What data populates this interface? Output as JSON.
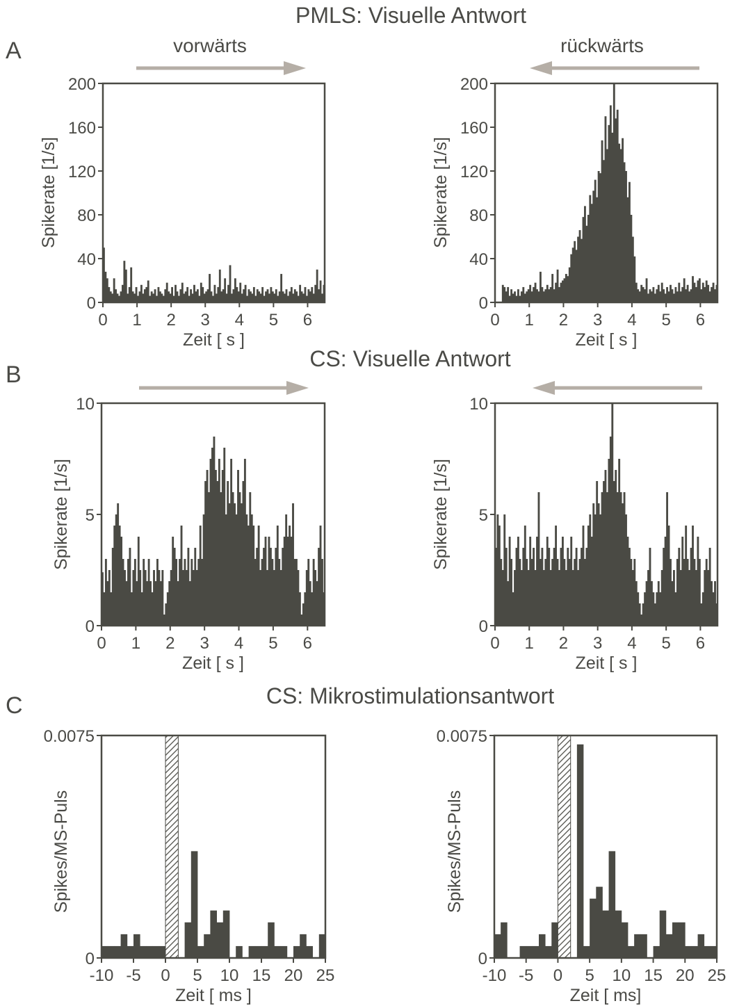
{
  "figure": {
    "section_titles": {
      "A": "PMLS: Visuelle Antwort",
      "B": "CS: Visuelle Antwort",
      "C": "CS: Mikrostimulationsantwort"
    },
    "panel_letters": [
      "A",
      "B",
      "C"
    ],
    "direction_labels": {
      "forward": "vorwärts",
      "backward": "rückwärts"
    },
    "colors": {
      "bars": "#4a4a44",
      "arrow": "#b5aea6",
      "text": "#4a4a46"
    }
  },
  "chart_data": [
    {
      "id": "A-left",
      "type": "bar",
      "section": "A",
      "direction_arrow": "right",
      "title": "",
      "direction_label": "vorwärts",
      "xlabel": "Zeit [ s ]",
      "ylabel": "Spikerate [1/s]",
      "xlim": [
        0,
        6.5
      ],
      "ylim": [
        0,
        200
      ],
      "xticks": [
        0,
        1,
        2,
        3,
        4,
        5,
        6
      ],
      "yticks": [
        0,
        40,
        80,
        120,
        160,
        200
      ],
      "bin_width": 0.05,
      "values": [
        50,
        28,
        22,
        14,
        10,
        8,
        22,
        12,
        8,
        6,
        10,
        16,
        38,
        30,
        8,
        14,
        32,
        10,
        8,
        14,
        6,
        10,
        16,
        8,
        12,
        14,
        20,
        6,
        10,
        8,
        12,
        6,
        14,
        10,
        8,
        6,
        12,
        18,
        10,
        8,
        14,
        6,
        16,
        10,
        6,
        12,
        18,
        8,
        10,
        14,
        6,
        12,
        8,
        16,
        10,
        12,
        6,
        18,
        14,
        8,
        10,
        12,
        26,
        10,
        6,
        16,
        8,
        14,
        30,
        10,
        12,
        22,
        8,
        16,
        34,
        8,
        12,
        22,
        14,
        10,
        18,
        8,
        12,
        16,
        6,
        12,
        10,
        8,
        14,
        6,
        12,
        10,
        8,
        14,
        6,
        10,
        12,
        8,
        14,
        10,
        8,
        12,
        6,
        10,
        26,
        10,
        8,
        12,
        6,
        10,
        14,
        8,
        12,
        10,
        6,
        16,
        10,
        8,
        14,
        6,
        12,
        10,
        14,
        8,
        16,
        30,
        12,
        20,
        8,
        16
      ]
    },
    {
      "id": "A-right",
      "type": "bar",
      "section": "A",
      "direction_arrow": "left",
      "title": "",
      "direction_label": "rückwärts",
      "xlabel": "Zeit [ s ]",
      "ylabel": "Spikerate [1/s]",
      "xlim": [
        0,
        6.5
      ],
      "ylim": [
        0,
        200
      ],
      "xticks": [
        0,
        1,
        2,
        3,
        4,
        5,
        6
      ],
      "yticks": [
        0,
        40,
        80,
        120,
        160,
        200
      ],
      "bin_width": 0.05,
      "values": [
        0,
        0,
        0,
        0,
        16,
        14,
        10,
        14,
        6,
        12,
        8,
        10,
        6,
        12,
        6,
        10,
        14,
        8,
        10,
        12,
        16,
        10,
        14,
        18,
        12,
        10,
        28,
        14,
        10,
        12,
        16,
        12,
        14,
        26,
        12,
        18,
        30,
        14,
        18,
        20,
        22,
        26,
        24,
        32,
        44,
        50,
        56,
        48,
        60,
        66,
        58,
        78,
        88,
        70,
        80,
        98,
        90,
        102,
        112,
        96,
        120,
        118,
        148,
        130,
        170,
        140,
        162,
        180,
        155,
        200,
        168,
        176,
        145,
        140,
        150,
        128,
        120,
        96,
        110,
        80,
        60,
        42,
        18,
        12,
        10,
        16,
        14,
        12,
        22,
        8,
        12,
        10,
        14,
        8,
        12,
        16,
        10,
        18,
        12,
        8,
        14,
        10,
        16,
        12,
        8,
        14,
        10,
        18,
        10,
        14,
        22,
        12,
        16,
        10,
        12,
        24,
        18,
        14,
        20,
        22,
        12,
        18,
        14,
        20,
        16,
        10,
        14,
        18,
        12,
        16,
        20
      ]
    },
    {
      "id": "B-left",
      "type": "bar",
      "section": "B",
      "direction_arrow": "right",
      "title": "",
      "xlabel": "Zeit [ s ]",
      "ylabel": "Spikerate [1/s]",
      "xlim": [
        0,
        6.5
      ],
      "ylim": [
        0,
        10
      ],
      "xticks": [
        0,
        1,
        2,
        3,
        4,
        5,
        6
      ],
      "yticks": [
        0,
        5,
        10
      ],
      "bin_width": 0.05,
      "values": [
        2.4,
        1.5,
        3.0,
        2.0,
        2.5,
        1.5,
        3.5,
        4.5,
        5.0,
        5.5,
        4.5,
        4.0,
        3.0,
        2.5,
        2.0,
        3.0,
        3.5,
        1.5,
        2.5,
        3.0,
        2.0,
        4.0,
        2.5,
        1.5,
        3.0,
        2.5,
        2.0,
        3.0,
        2.0,
        1.5,
        2.5,
        2.0,
        3.0,
        2.5,
        2.0,
        2.5,
        0.5,
        1.0,
        1.5,
        2.0,
        2.5,
        4.0,
        3.5,
        3.0,
        2.0,
        3.0,
        4.5,
        2.5,
        3.0,
        2.5,
        3.5,
        2.0,
        3.0,
        2.5,
        3.5,
        2.5,
        3.0,
        4.5,
        3.0,
        5.0,
        6.5,
        7.0,
        6.0,
        7.5,
        8.0,
        8.5,
        7.0,
        6.5,
        7.5,
        6.0,
        7.0,
        8.0,
        5.0,
        6.5,
        5.5,
        7.5,
        6.0,
        5.5,
        5.0,
        7.0,
        6.0,
        5.5,
        6.5,
        7.5,
        5.0,
        4.5,
        6.0,
        5.0,
        4.5,
        3.0,
        3.5,
        4.5,
        2.5,
        3.0,
        3.5,
        4.0,
        2.5,
        4.0,
        3.5,
        3.0,
        2.5,
        3.5,
        4.5,
        3.0,
        2.5,
        3.5,
        4.0,
        5.0,
        4.0,
        4.5,
        4.0,
        5.5,
        3.0,
        3.0,
        2.5,
        1.5,
        0.5,
        1.0,
        1.5,
        2.5,
        3.0,
        2.0,
        1.5,
        3.0,
        2.5,
        2.0,
        3.5,
        4.5,
        3.0,
        1.5
      ]
    },
    {
      "id": "B-right",
      "type": "bar",
      "section": "B",
      "direction_arrow": "left",
      "title": "",
      "xlabel": "Zeit [ s ]",
      "ylabel": "Spikerate [1/s]",
      "xlim": [
        0,
        6.5
      ],
      "ylim": [
        0,
        10
      ],
      "xticks": [
        0,
        1,
        2,
        3,
        4,
        5,
        6
      ],
      "yticks": [
        0,
        5,
        10
      ],
      "bin_width": 0.05,
      "values": [
        3.5,
        5.0,
        4.5,
        3.0,
        2.5,
        5.0,
        3.5,
        2.0,
        4.0,
        3.0,
        1.5,
        2.5,
        3.5,
        4.0,
        3.0,
        2.5,
        3.5,
        4.5,
        3.0,
        2.5,
        4.0,
        3.0,
        3.5,
        2.5,
        4.0,
        6.0,
        3.0,
        3.5,
        2.5,
        3.0,
        4.0,
        3.5,
        2.5,
        3.0,
        3.5,
        4.5,
        3.0,
        2.5,
        3.5,
        4.0,
        3.0,
        2.5,
        3.5,
        3.0,
        4.0,
        2.5,
        3.0,
        3.5,
        2.5,
        3.0,
        3.5,
        4.5,
        3.0,
        3.5,
        4.5,
        5.0,
        4.0,
        5.5,
        5.0,
        6.5,
        5.5,
        5.0,
        6.0,
        6.5,
        7.0,
        6.0,
        7.5,
        8.5,
        10.0,
        6.5,
        7.0,
        6.0,
        7.5,
        6.0,
        5.5,
        6.0,
        5.0,
        4.0,
        3.5,
        3.0,
        2.5,
        3.0,
        2.0,
        1.5,
        1.0,
        0.5,
        1.0,
        1.5,
        2.0,
        2.5,
        3.5,
        2.0,
        1.5,
        1.0,
        1.5,
        2.0,
        1.5,
        2.5,
        3.5,
        4.0,
        6.0,
        4.5,
        3.0,
        2.0,
        2.5,
        1.5,
        3.0,
        3.5,
        2.5,
        4.0,
        3.0,
        4.5,
        3.0,
        2.5,
        3.5,
        4.5,
        3.0,
        2.5,
        4.0,
        3.0,
        1.0,
        1.5,
        2.5,
        3.0,
        2.5,
        3.5,
        2.0,
        1.5,
        2.0,
        1.0
      ]
    },
    {
      "id": "C-left",
      "type": "bar",
      "section": "C",
      "title": "",
      "xlabel": "Zeit [ ms ]",
      "ylabel": "Spikes/MS-Puls",
      "xlim": [
        -10,
        25
      ],
      "ylim": [
        0,
        0.0075
      ],
      "xtick_labels": [
        "-10",
        "-5",
        "0",
        "5",
        "10",
        "15",
        "20",
        "25"
      ],
      "xticks": [
        -10,
        -5,
        0,
        5,
        10,
        15,
        20,
        25
      ],
      "ytick_labels": [
        "0",
        "0.0075"
      ],
      "yticks": [
        0,
        0.0075
      ],
      "stimulus_artifact": [
        0,
        2
      ],
      "bin_width": 1,
      "bin_start": -10,
      "values": [
        0.0004,
        0.0004,
        0.0004,
        0.0008,
        0.0004,
        0.0008,
        0.0004,
        0.0004,
        0.0004,
        0.0004,
        0.0016,
        0,
        0,
        0.0012,
        0.0036,
        0.0004,
        0.0008,
        0.0016,
        0.0012,
        0.0016,
        0,
        0.0004,
        0,
        0.0004,
        0.0004,
        0.0004,
        0.0012,
        0.0004,
        0.0004,
        0,
        0.0004,
        0.0008,
        0.0004,
        0,
        0.0008
      ]
    },
    {
      "id": "C-right",
      "type": "bar",
      "section": "C",
      "title": "",
      "xlabel": "Zeit [ ms]",
      "ylabel": "Spikes/MS-Puls",
      "xlim": [
        -10,
        25
      ],
      "ylim": [
        0,
        0.0075
      ],
      "xtick_labels": [
        "-10",
        "-5",
        "0",
        "5",
        "10",
        "15",
        "20",
        "25"
      ],
      "xticks": [
        -10,
        -5,
        0,
        5,
        10,
        15,
        20,
        25
      ],
      "ytick_labels": [
        "0",
        "0.0075"
      ],
      "yticks": [
        0,
        0.0075
      ],
      "stimulus_artifact": [
        0,
        2
      ],
      "bin_width": 1,
      "bin_start": -10,
      "values": [
        0.0008,
        0.0012,
        0,
        0,
        0.0004,
        0.0004,
        0.0004,
        0.0008,
        0.0004,
        0.0012,
        0,
        0,
        0,
        0.0072,
        0.0004,
        0.002,
        0.0024,
        0.0016,
        0.0036,
        0.0016,
        0.0012,
        0.0004,
        0.0008,
        0.0008,
        0,
        0.0004,
        0.0016,
        0.0008,
        0.0012,
        0.0012,
        0.0004,
        0.0004,
        0.0008,
        0.0004,
        0.0004
      ]
    }
  ]
}
